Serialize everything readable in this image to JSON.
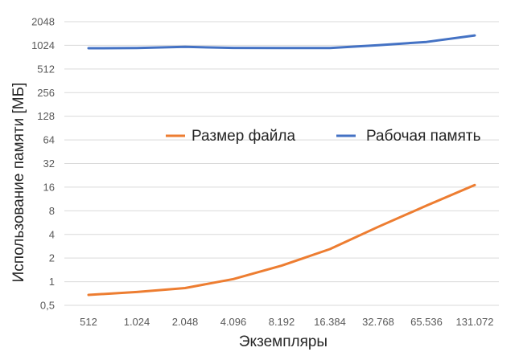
{
  "chart_data": {
    "type": "line",
    "title": "",
    "xlabel": "Экземпляры",
    "ylabel": "Использование памяти [МБ]",
    "y_scale": "log2",
    "ylim": [
      0.5,
      2048
    ],
    "grid": true,
    "legend_position": "center",
    "categories": [
      "512",
      "1.024",
      "2.048",
      "4.096",
      "8.192",
      "16.384",
      "32.768",
      "65.536",
      "131.072"
    ],
    "y_ticks": [
      {
        "value": 0.5,
        "label": "0,5"
      },
      {
        "value": 1,
        "label": "1"
      },
      {
        "value": 2,
        "label": "2"
      },
      {
        "value": 4,
        "label": "4"
      },
      {
        "value": 8,
        "label": "8"
      },
      {
        "value": 16,
        "label": "16"
      },
      {
        "value": 32,
        "label": "32"
      },
      {
        "value": 64,
        "label": "64"
      },
      {
        "value": 128,
        "label": "128"
      },
      {
        "value": 256,
        "label": "256"
      },
      {
        "value": 512,
        "label": "512"
      },
      {
        "value": 1024,
        "label": "1024"
      },
      {
        "value": 2048,
        "label": "2048"
      }
    ],
    "series": [
      {
        "name": "Размер файла",
        "color": "#ED7D31",
        "values": [
          0.68,
          0.74,
          0.83,
          1.08,
          1.6,
          2.6,
          5.0,
          9.3,
          17.0
        ]
      },
      {
        "name": "Рабочая память",
        "color": "#4472C4",
        "values": [
          940,
          945,
          980,
          950,
          945,
          945,
          1030,
          1130,
          1370
        ]
      }
    ]
  }
}
